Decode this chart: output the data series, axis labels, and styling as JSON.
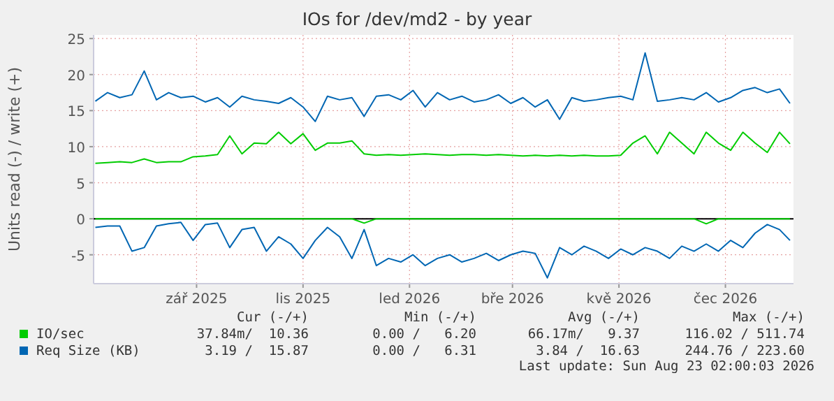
{
  "chart_data": {
    "type": "line",
    "title": "IOs for /dev/md2 - by year",
    "ylabel": "Units read (-) / write (+)",
    "x": [
      "2025-07-20",
      "2025-07-27",
      "2025-08-03",
      "2025-08-10",
      "2025-08-17",
      "2025-08-24",
      "2025-08-31",
      "2025-09-07",
      "2025-09-14",
      "2025-09-21",
      "2025-09-28",
      "2025-10-05",
      "2025-10-12",
      "2025-10-19",
      "2025-10-26",
      "2025-11-02",
      "2025-11-09",
      "2025-11-16",
      "2025-11-23",
      "2025-11-30",
      "2025-12-07",
      "2025-12-14",
      "2025-12-21",
      "2025-12-28",
      "2026-01-04",
      "2026-01-11",
      "2026-01-18",
      "2026-01-25",
      "2026-02-01",
      "2026-02-08",
      "2026-02-15",
      "2026-02-22",
      "2026-03-01",
      "2026-03-08",
      "2026-03-15",
      "2026-03-22",
      "2026-03-29",
      "2026-04-05",
      "2026-04-12",
      "2026-04-19",
      "2026-04-26",
      "2026-05-03",
      "2026-05-10",
      "2026-05-17",
      "2026-05-24",
      "2026-05-31",
      "2026-06-07",
      "2026-06-14",
      "2026-06-21",
      "2026-06-28",
      "2026-07-05",
      "2026-07-12",
      "2026-07-19",
      "2026-07-26",
      "2026-08-02",
      "2026-08-09",
      "2026-08-16",
      "2026-08-22"
    ],
    "series": [
      {
        "name": "IO/sec",
        "color": "#00cc00",
        "values": [
          7.7,
          7.8,
          7.9,
          7.8,
          8.3,
          7.8,
          7.9,
          7.9,
          8.6,
          8.7,
          8.9,
          11.5,
          9.0,
          10.5,
          10.4,
          12.0,
          10.4,
          11.8,
          9.5,
          10.5,
          10.5,
          10.8,
          9.0,
          8.8,
          8.9,
          8.8,
          8.9,
          9.0,
          8.9,
          8.8,
          8.9,
          8.9,
          8.8,
          8.9,
          8.8,
          8.7,
          8.8,
          8.7,
          8.8,
          8.7,
          8.8,
          8.7,
          8.7,
          8.8,
          10.5,
          11.5,
          9.0,
          12.0,
          10.5,
          9.0,
          12.0,
          10.5,
          9.5,
          12.0,
          10.5,
          9.2,
          12.0,
          10.4
        ]
      },
      {
        "color": "#00cc00",
        "values": [
          0,
          0,
          0,
          0,
          0,
          0,
          0,
          0,
          0,
          0,
          0,
          0,
          0,
          0,
          0,
          0,
          0,
          0,
          0,
          0,
          0,
          0,
          -0.6,
          0,
          0,
          0,
          0,
          0,
          0,
          0,
          0,
          0,
          0,
          0,
          0,
          0,
          0,
          0,
          0,
          0,
          0,
          0,
          0,
          0,
          0,
          0,
          0,
          0,
          0,
          0,
          -0.7,
          0,
          0,
          0,
          0,
          0,
          0,
          0
        ]
      },
      {
        "name": "Req Size (KB)",
        "color": "#0066b3",
        "values": [
          16.3,
          17.5,
          16.8,
          17.2,
          20.5,
          16.5,
          17.5,
          16.8,
          17.0,
          16.2,
          16.8,
          15.5,
          17.0,
          16.5,
          16.3,
          16.0,
          16.8,
          15.5,
          13.5,
          17.0,
          16.5,
          16.8,
          14.2,
          17.0,
          17.2,
          16.5,
          17.8,
          15.5,
          17.5,
          16.5,
          17.0,
          16.2,
          16.5,
          17.2,
          16.0,
          16.8,
          15.5,
          16.5,
          13.8,
          16.8,
          16.3,
          16.5,
          16.8,
          17.0,
          16.5,
          23.0,
          16.3,
          16.5,
          16.8,
          16.5,
          17.5,
          16.2,
          16.8,
          17.8,
          18.2,
          17.5,
          18.0,
          16.0
        ]
      },
      {
        "color": "#0066b3",
        "values": [
          -1.2,
          -1.0,
          -1.0,
          -4.5,
          -4.0,
          -1.0,
          -0.7,
          -0.5,
          -3.0,
          -0.8,
          -0.6,
          -4.0,
          -1.5,
          -1.2,
          -4.5,
          -2.5,
          -3.5,
          -5.5,
          -3.0,
          -1.2,
          -2.5,
          -5.5,
          -1.5,
          -6.5,
          -5.5,
          -6.0,
          -5.0,
          -6.5,
          -5.5,
          -5.0,
          -6.0,
          -5.5,
          -4.8,
          -5.8,
          -5.0,
          -4.5,
          -4.8,
          -8.2,
          -4.0,
          -5.0,
          -3.8,
          -4.5,
          -5.5,
          -4.2,
          -5.0,
          -4.0,
          -4.5,
          -5.5,
          -3.8,
          -4.5,
          -3.5,
          -4.5,
          -3.0,
          -4.0,
          -2.0,
          -0.8,
          -1.5,
          -3.0
        ]
      }
    ],
    "xlim": [
      "2025-07-19",
      "2026-08-24"
    ],
    "xticks": [
      {
        "value": "2025-09-16",
        "label": "zář 2025"
      },
      {
        "value": "2025-11-16",
        "label": "lis 2025"
      },
      {
        "value": "2026-01-16",
        "label": "led 2026"
      },
      {
        "value": "2026-03-16",
        "label": "bře 2026"
      },
      {
        "value": "2026-05-16",
        "label": "kvě 2026"
      },
      {
        "value": "2026-07-16",
        "label": "čec 2026"
      }
    ],
    "ylim": [
      -9,
      25.5
    ],
    "yticks": [
      -5,
      0,
      5,
      10,
      15,
      20,
      25
    ],
    "grid": true,
    "legend": "bottom",
    "ref_lines": [
      {
        "axis": "y",
        "value": 0,
        "color": "#000000"
      }
    ],
    "annotations": [
      "Cur (-/+)",
      "Min (-/+)",
      "Avg (-/+)",
      "Max (-/+)",
      "37.84m/  10.36",
      "0.00 /   6.20",
      "66.17m/   9.37",
      "116.02 / 511.74",
      "3.19 /  15.87",
      "0.00 /   6.31",
      "3.84 /  16.63",
      "244.76 / 223.60",
      "Last update: Sun Aug 23 02:00:03 2026"
    ]
  }
}
